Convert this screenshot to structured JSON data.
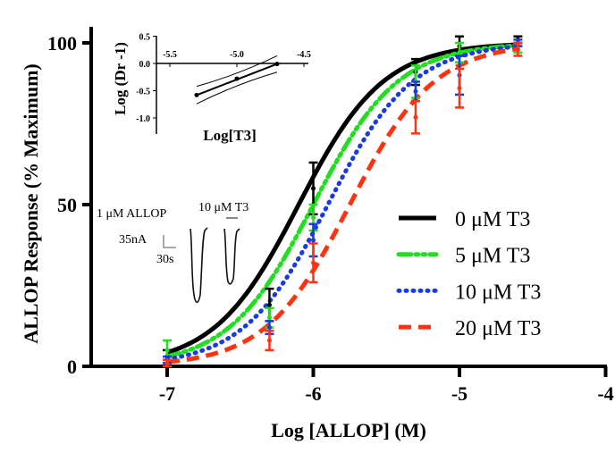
{
  "chart_data": [
    {
      "type": "line",
      "xlabel": "Log [ALLOP] (M)",
      "ylabel": "ALLOP Response (% Maximum)",
      "xlim": [
        -7.55,
        -4
      ],
      "ylim": [
        0,
        100
      ],
      "x_ticks": [
        "-7",
        "-6",
        "-5",
        "-4"
      ],
      "x_tick_values": [
        -7,
        -6,
        -5,
        -4
      ],
      "y_ticks": [
        "0",
        "50",
        "100"
      ],
      "y_tick_values": [
        0,
        50,
        100
      ],
      "legend_position": "right",
      "x": [
        -7,
        -6.3,
        -6,
        -5.3,
        -5,
        -4.6
      ],
      "series": [
        {
          "name": "0 μM T3",
          "color": "#000000",
          "dash": "solid",
          "values": [
            3,
            19,
            55,
            91,
            99,
            101
          ],
          "errors": [
            2,
            5,
            8,
            4,
            3,
            1
          ],
          "fit_logEC50": -6.1,
          "fit_hill": 1.5
        },
        {
          "name": "5 μM T3",
          "color": "#22dd22",
          "dash": "dash-dot-dot",
          "values": [
            5,
            15,
            46,
            88,
            97,
            98
          ],
          "errors": [
            3,
            3,
            4,
            5,
            3,
            1
          ],
          "fit_logEC50": -6.0,
          "fit_hill": 1.5
        },
        {
          "name": "10 μM T3",
          "color": "#1a3be0",
          "dash": "dotted",
          "values": [
            2,
            12,
            39,
            85,
            90,
            100
          ],
          "errors": [
            1,
            2,
            5,
            3,
            6,
            1
          ],
          "fit_logEC50": -5.9,
          "fit_hill": 1.5
        },
        {
          "name": "20 μM T3",
          "color": "#ff3311",
          "dash": "dashed",
          "values": [
            1,
            8,
            32,
            77,
            86,
            98
          ],
          "errors": [
            1,
            3,
            6,
            5,
            6,
            2
          ],
          "fit_logEC50": -5.75,
          "fit_hill": 1.5
        }
      ]
    },
    {
      "type": "line",
      "inset": true,
      "xlabel": "Log[T3]",
      "ylabel": "Log (Dr -1)",
      "xlim": [
        -5.5,
        -4.45
      ],
      "ylim": [
        -1.3,
        0.5
      ],
      "x_ticks": [
        "-5.5",
        "-5.0",
        "-4.5"
      ],
      "x_tick_values": [
        -5.5,
        -5.0,
        -4.5
      ],
      "y_ticks": [
        "0.5",
        "0.0",
        "-0.5",
        "-1.0"
      ],
      "y_tick_values": [
        0.5,
        0.0,
        -0.5,
        -1.0
      ],
      "x": [
        -5.3,
        -5.0,
        -4.7
      ],
      "values": [
        -0.58,
        -0.28,
        -0.01
      ]
    }
  ],
  "trace_inset": {
    "label_allop": "1 μM ALLOP",
    "label_t3": "10 μM T3",
    "scale_current": "35nA",
    "scale_time": "30s"
  }
}
